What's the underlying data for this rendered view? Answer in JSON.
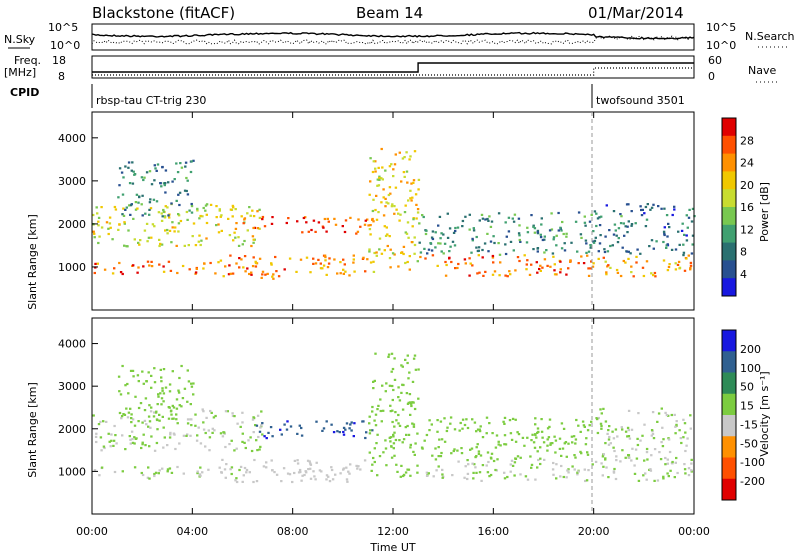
{
  "header": {
    "station": "Blackstone (fitACF)",
    "beam": "Beam 14",
    "date": "01/Mar/2014"
  },
  "side_labels": {
    "nsky": "N.Sky",
    "nsearch": "N.Search",
    "freq": "Freq.",
    "freq_unit": "[MHz]",
    "nave": "Nave",
    "cpid": "CPID"
  },
  "cpid_segments": [
    {
      "label": "rbsp-tau CT-trig 230",
      "start_hour": 0
    },
    {
      "label": "twofsound 3501",
      "start_hour": 20
    }
  ],
  "panels": {
    "noise": {
      "left_ticks": [
        "10^5",
        "10^0"
      ],
      "right_ticks": [
        "10^5",
        "10^0"
      ]
    },
    "freq": {
      "left_ticks": [
        "18",
        "8"
      ],
      "right_ticks": [
        "60",
        "0"
      ]
    }
  },
  "chart_data": [
    {
      "type": "heatmap",
      "title": "",
      "quantity": "Power",
      "ylabel": "Slant Range [km]",
      "xlabel": "",
      "colorbar_label": "Power [dB]",
      "colorbar_ticks": [
        "28",
        "24",
        "20",
        "16",
        "12",
        "8",
        "4"
      ],
      "colorbar_colors": [
        "#e00000",
        "#ff5000",
        "#ff9000",
        "#f0c800",
        "#c8dc30",
        "#78c850",
        "#40a070",
        "#2a7070",
        "#285090",
        "#1818e0"
      ],
      "ylim": [
        0,
        4600
      ],
      "yticks": [
        "1000",
        "2000",
        "3000",
        "4000"
      ],
      "regions": [
        {
          "x": [
            0.0,
            6.5
          ],
          "y": [
            850,
            1150
          ],
          "value": 26
        },
        {
          "x": [
            0.0,
            6.8
          ],
          "y": [
            1500,
            2500
          ],
          "value": 18
        },
        {
          "x": [
            1.0,
            4.0
          ],
          "y": [
            2200,
            3500
          ],
          "value": 9
        },
        {
          "x": [
            5.0,
            11.0
          ],
          "y": [
            750,
            1300
          ],
          "value": 24
        },
        {
          "x": [
            6.0,
            11.2
          ],
          "y": [
            1800,
            2200
          ],
          "value": 27
        },
        {
          "x": [
            11.0,
            13.0
          ],
          "y": [
            900,
            3800
          ],
          "value": 20
        },
        {
          "x": [
            13.0,
            20.0
          ],
          "y": [
            800,
            1300
          ],
          "value": 25
        },
        {
          "x": [
            13.0,
            20.0
          ],
          "y": [
            1300,
            2300
          ],
          "value": 10
        },
        {
          "x": [
            20.0,
            24.0
          ],
          "y": [
            800,
            1300
          ],
          "value": 23
        },
        {
          "x": [
            20.0,
            24.0
          ],
          "y": [
            1300,
            2500
          ],
          "value": 8
        }
      ]
    },
    {
      "type": "heatmap",
      "title": "",
      "quantity": "Velocity",
      "ylabel": "Slant Range [km]",
      "xlabel": "Time UT",
      "colorbar_label": "Velocity [m s⁻¹]",
      "colorbar_ticks": [
        "200",
        "100",
        "50",
        "15",
        "-15",
        "-50",
        "-100",
        "-200"
      ],
      "colorbar_colors": [
        "#1818e0",
        "#306090",
        "#2e8b57",
        "#7ccc40",
        "#c8c8c8",
        "#ff9000",
        "#ff5000",
        "#e00000"
      ],
      "ylim": [
        0,
        4600
      ],
      "yticks": [
        "1000",
        "2000",
        "3000",
        "4000"
      ],
      "xticks": [
        "00:00",
        "04:00",
        "08:00",
        "12:00",
        "16:00",
        "20:00",
        "00:00"
      ],
      "regions": [
        {
          "x": [
            0.0,
            6.5
          ],
          "y": [
            850,
            1150
          ],
          "value": -5
        },
        {
          "x": [
            0.0,
            6.8
          ],
          "y": [
            1500,
            2500
          ],
          "value": 0
        },
        {
          "x": [
            1.0,
            4.0
          ],
          "y": [
            2200,
            3500
          ],
          "value": 30
        },
        {
          "x": [
            5.0,
            11.0
          ],
          "y": [
            750,
            1300
          ],
          "value": -40
        },
        {
          "x": [
            6.5,
            11.2
          ],
          "y": [
            1800,
            2200
          ],
          "value": 180
        },
        {
          "x": [
            11.0,
            13.0
          ],
          "y": [
            900,
            3800
          ],
          "value": 40
        },
        {
          "x": [
            13.0,
            20.0
          ],
          "y": [
            800,
            1300
          ],
          "value": 0
        },
        {
          "x": [
            13.0,
            20.0
          ],
          "y": [
            1300,
            2300
          ],
          "value": 20
        },
        {
          "x": [
            20.0,
            24.0
          ],
          "y": [
            800,
            2500
          ],
          "value": 0
        }
      ]
    }
  ]
}
